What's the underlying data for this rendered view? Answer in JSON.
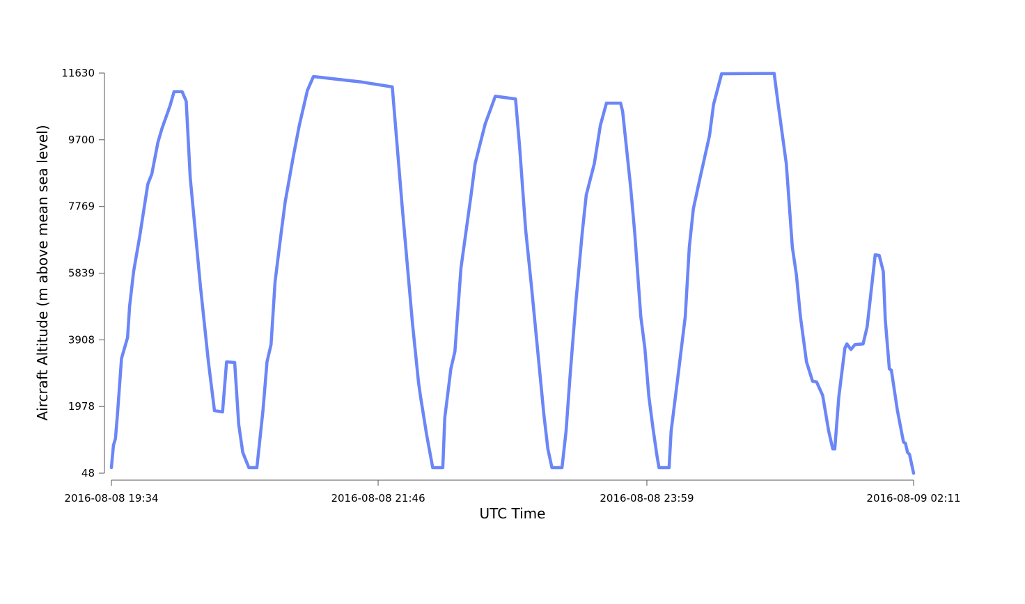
{
  "chart_data": {
    "type": "line",
    "x_label": "UTC Time",
    "y_label": "Aircraft Altitude (m above mean sea level)",
    "x": [
      "2016-08-08 19:34",
      "2016-08-08 19:35",
      "2016-08-08 19:36",
      "2016-08-08 19:37",
      "2016-08-08 19:39",
      "2016-08-08 19:42",
      "2016-08-08 19:43",
      "2016-08-08 19:45",
      "2016-08-08 19:48",
      "2016-08-08 19:52",
      "2016-08-08 19:54",
      "2016-08-08 19:57",
      "2016-08-08 19:59",
      "2016-08-08 20:03",
      "2016-08-08 20:05",
      "2016-08-08 20:09",
      "2016-08-08 20:11",
      "2016-08-08 20:13",
      "2016-08-08 20:18",
      "2016-08-08 20:22",
      "2016-08-08 20:25",
      "2016-08-08 20:29",
      "2016-08-08 20:31",
      "2016-08-08 20:35",
      "2016-08-08 20:37",
      "2016-08-08 20:39",
      "2016-08-08 20:42",
      "2016-08-08 20:46",
      "2016-08-08 20:49",
      "2016-08-08 20:51",
      "2016-08-08 20:53",
      "2016-08-08 20:55",
      "2016-08-08 20:58",
      "2016-08-08 21:00",
      "2016-08-08 21:04",
      "2016-08-08 21:07",
      "2016-08-08 21:11",
      "2016-08-08 21:14",
      "2016-08-08 21:38",
      "2016-08-08 21:53",
      "2016-08-08 21:58",
      "2016-08-08 22:03",
      "2016-08-08 22:06",
      "2016-08-08 22:07",
      "2016-08-08 22:10",
      "2016-08-08 22:13",
      "2016-08-08 22:18",
      "2016-08-08 22:19",
      "2016-08-08 22:22",
      "2016-08-08 22:24",
      "2016-08-08 22:27",
      "2016-08-08 22:32",
      "2016-08-08 22:34",
      "2016-08-08 22:39",
      "2016-08-08 22:44",
      "2016-08-08 22:54",
      "2016-08-08 22:56",
      "2016-08-08 22:59",
      "2016-08-08 23:02",
      "2016-08-08 23:06",
      "2016-08-08 23:08",
      "2016-08-08 23:10",
      "2016-08-08 23:12",
      "2016-08-08 23:17",
      "2016-08-08 23:19",
      "2016-08-08 23:21",
      "2016-08-08 23:24",
      "2016-08-08 23:27",
      "2016-08-08 23:29",
      "2016-08-08 23:33",
      "2016-08-08 23:36",
      "2016-08-08 23:39",
      "2016-08-08 23:46",
      "2016-08-08 23:47",
      "2016-08-08 23:51",
      "2016-08-08 23:53",
      "2016-08-08 23:56",
      "2016-08-08 23:58",
      "2016-08-09 00:00",
      "2016-08-09 00:02",
      "2016-08-09 00:04",
      "2016-08-09 00:05",
      "2016-08-09 00:10",
      "2016-08-09 00:11",
      "2016-08-09 00:14",
      "2016-08-09 00:18",
      "2016-08-09 00:20",
      "2016-08-09 00:22",
      "2016-08-09 00:25",
      "2016-08-09 00:30",
      "2016-08-09 00:32",
      "2016-08-09 00:36",
      "2016-08-09 01:02",
      "2016-08-09 01:04",
      "2016-08-09 01:08",
      "2016-08-09 01:11",
      "2016-08-09 01:13",
      "2016-08-09 01:15",
      "2016-08-09 01:18",
      "2016-08-09 01:21",
      "2016-08-09 01:23",
      "2016-08-09 01:26",
      "2016-08-09 01:29",
      "2016-08-09 01:31",
      "2016-08-09 01:32",
      "2016-08-09 01:34",
      "2016-08-09 01:37",
      "2016-08-09 01:38",
      "2016-08-09 01:40",
      "2016-08-09 01:42",
      "2016-08-09 01:46",
      "2016-08-09 01:48",
      "2016-08-09 01:52",
      "2016-08-09 01:54",
      "2016-08-09 01:56",
      "2016-08-09 01:57",
      "2016-08-09 01:59",
      "2016-08-09 02:00",
      "2016-08-09 02:03",
      "2016-08-09 02:06",
      "2016-08-09 02:07",
      "2016-08-09 02:08",
      "2016-08-09 02:09",
      "2016-08-09 02:11"
    ],
    "series": [
      {
        "color": "#6b86f7",
        "values": [
          210,
          850,
          1050,
          1760,
          3370,
          3975,
          4880,
          5890,
          6900,
          8410,
          8710,
          9620,
          10020,
          10680,
          11090,
          11090,
          10820,
          8610,
          5490,
          3270,
          1860,
          1820,
          3270,
          3250,
          1460,
          650,
          210,
          210,
          1860,
          3270,
          3770,
          5590,
          7000,
          7900,
          9210,
          10120,
          11130,
          11530,
          11370,
          11230,
          7700,
          4380,
          2670,
          2260,
          1160,
          210,
          210,
          1660,
          3070,
          3570,
          5990,
          8100,
          9010,
          10160,
          10960,
          10880,
          9510,
          7100,
          5390,
          2970,
          1760,
          750,
          210,
          210,
          1260,
          2870,
          5080,
          7000,
          8100,
          9010,
          10120,
          10760,
          10760,
          10520,
          8310,
          7000,
          4580,
          3670,
          2260,
          1360,
          550,
          210,
          210,
          1260,
          2670,
          4580,
          6590,
          7700,
          8510,
          9820,
          10720,
          11610,
          11620,
          10720,
          9010,
          6590,
          5790,
          4580,
          3270,
          2710,
          2690,
          2300,
          1260,
          750,
          750,
          2260,
          3670,
          3790,
          3630,
          3770,
          3790,
          4280,
          6370,
          6350,
          5890,
          4480,
          3070,
          3030,
          1860,
          950,
          910,
          650,
          590,
          48
        ]
      }
    ],
    "xlim": [
      "2016-08-08 19:34",
      "2016-08-09 02:11"
    ],
    "xticks": [
      "2016-08-08 19:34",
      "2016-08-08 21:46",
      "2016-08-08 23:59",
      "2016-08-09 02:11"
    ],
    "ylim": [
      48,
      11630
    ],
    "yticks": [
      48,
      1978,
      3908,
      5839,
      7769,
      9700,
      11630
    ]
  }
}
